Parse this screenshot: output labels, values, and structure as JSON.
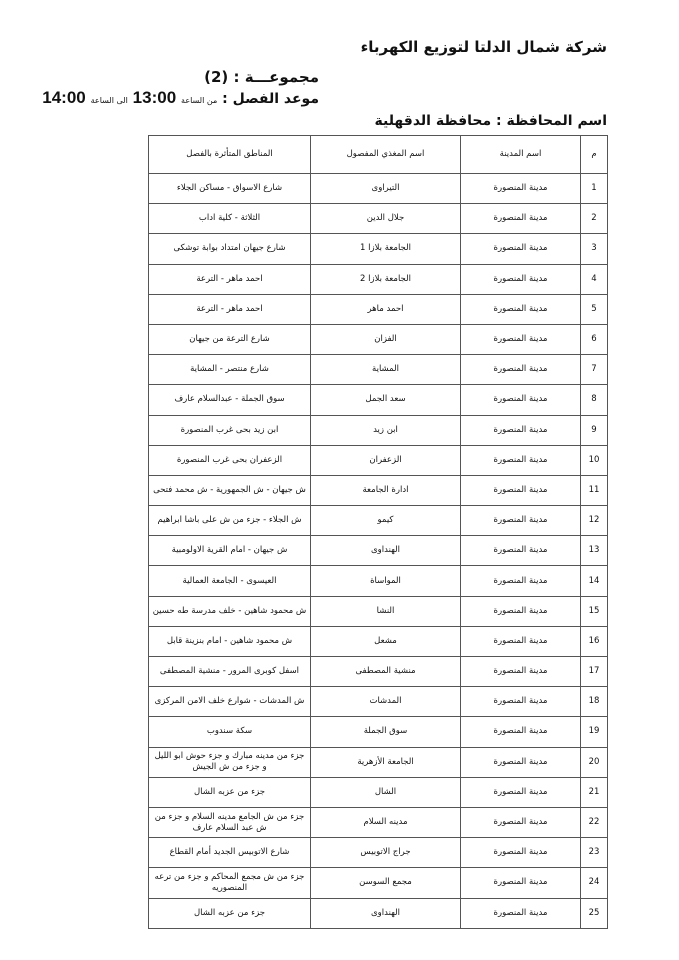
{
  "header": {
    "company": "شركة شمال الدلتا لتوزيع الكهرباء",
    "group_label": "مجموعـــة : (2)",
    "cut_label": "موعد الفصل :",
    "from_label": "من الساعة",
    "from_time": "13:00",
    "to_label": "الى الساعة",
    "to_time": "14:00",
    "province": "اسم المحافظة : محافظة الدقهلية"
  },
  "table": {
    "columns": [
      "م",
      "اسم المدينة",
      "اسم المغذي المفصول",
      "المناطق المتأثرة بالفصل"
    ],
    "rows": [
      {
        "n": "1",
        "city": "مدينة المنصورة",
        "feeder": "التيراوى",
        "areas": "شارع الاسواق - مساكن الجلاء"
      },
      {
        "n": "2",
        "city": "مدينة المنصورة",
        "feeder": "جلال الدين",
        "areas": "الثلاثة - كلية اداب"
      },
      {
        "n": "3",
        "city": "مدينة المنصورة",
        "feeder": "الجامعة بلازا 1",
        "areas": "شارع جيهان امتداد بوابة توشكى"
      },
      {
        "n": "4",
        "city": "مدينة المنصورة",
        "feeder": "الجامعة بلازا 2",
        "areas": "احمد ماهر - الترعة"
      },
      {
        "n": "5",
        "city": "مدينة المنصورة",
        "feeder": "احمد ماهر",
        "areas": "احمد ماهر - الترعة"
      },
      {
        "n": "6",
        "city": "مدينة المنصورة",
        "feeder": "الفزان",
        "areas": "شارع الترعة من جيهان"
      },
      {
        "n": "7",
        "city": "مدينة المنصورة",
        "feeder": "المشاية",
        "areas": "شارع منتصر - المشاية"
      },
      {
        "n": "8",
        "city": "مدينة المنصورة",
        "feeder": "سعد الجمل",
        "areas": "سوق الجملة - عبدالسلام عارف"
      },
      {
        "n": "9",
        "city": "مدينة المنصورة",
        "feeder": "ابن زيد",
        "areas": "ابن زيد بحى غرب المنصورة"
      },
      {
        "n": "10",
        "city": "مدينة المنصورة",
        "feeder": "الزعفران",
        "areas": "الزعفران بحى غرب المنصورة"
      },
      {
        "n": "11",
        "city": "مدينة المنصورة",
        "feeder": "ادارة الجامعة",
        "areas": "ش جيهان - ش الجمهورية - ش محمد فتحى"
      },
      {
        "n": "12",
        "city": "مدينة المنصورة",
        "feeder": "كيمو",
        "areas": "ش الجلاء - جزء من ش على باشا ابراهيم"
      },
      {
        "n": "13",
        "city": "مدينة المنصورة",
        "feeder": "الهنداوى",
        "areas": "ش جيهان - امام القرية الاولومبية"
      },
      {
        "n": "14",
        "city": "مدينة المنصورة",
        "feeder": "المواساة",
        "areas": "العيسوى - الجامعة العمالية"
      },
      {
        "n": "15",
        "city": "مدينة المنصورة",
        "feeder": "النشا",
        "areas": "ش محمود شاهين - خلف مدرسة طه حسين"
      },
      {
        "n": "16",
        "city": "مدينة المنصورة",
        "feeder": "مشعل",
        "areas": "ش محمود شاهين - امام بنزينة قابل"
      },
      {
        "n": "17",
        "city": "مدينة المنصورة",
        "feeder": "منشية المصطفى",
        "areas": "اسفل كوبرى المرور - منشية المصطفى"
      },
      {
        "n": "18",
        "city": "مدينة المنصورة",
        "feeder": "المدشات",
        "areas": "ش المدشات - شوارع خلف الامن المركزى"
      },
      {
        "n": "19",
        "city": "مدينة المنصورة",
        "feeder": "سوق الجملة",
        "areas": "سكة سندوب"
      },
      {
        "n": "20",
        "city": "مدينة المنصورة",
        "feeder": "الجامعة الأزهرية",
        "areas": "جزء من مدينه مبارك و جزء حوش ابو الليل و جزء من ش الجيش"
      },
      {
        "n": "21",
        "city": "مدينة المنصورة",
        "feeder": "الشال",
        "areas": "جزء من عزبه الشال"
      },
      {
        "n": "22",
        "city": "مدينة المنصورة",
        "feeder": "مدينه السلام",
        "areas": "جزء من ش الجامع مدينه السلام و جزء من ش عبد السلام عارف"
      },
      {
        "n": "23",
        "city": "مدينة المنصورة",
        "feeder": "جراج الاتوبيس",
        "areas": "شارع الاتوبيس الجديد أمام القطاع"
      },
      {
        "n": "24",
        "city": "مدينة المنصورة",
        "feeder": "مجمع السوسن",
        "areas": "جزء من ش مجمع المحاكم و جزء من ترعه المنصوريه"
      },
      {
        "n": "25",
        "city": "مدينة المنصورة",
        "feeder": "الهنداوى",
        "areas": "جزء من عزبه الشال"
      }
    ]
  }
}
